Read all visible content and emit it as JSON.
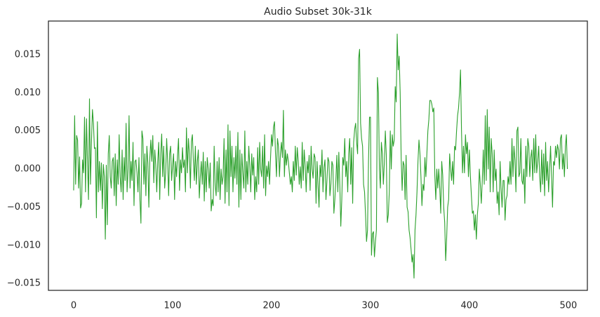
{
  "chart_data": {
    "type": "line",
    "title": "Audio Subset 30k-31k",
    "xlim": [
      -25.5,
      519.2
    ],
    "xticks": [
      0,
      100,
      200,
      300,
      400,
      500
    ],
    "ylim": [
      -0.0159,
      0.0194
    ],
    "yticks": [
      {
        "value": -0.015,
        "label": "−0.015"
      },
      {
        "value": -0.01,
        "label": "−0.010"
      },
      {
        "value": -0.005,
        "label": "−0.005"
      },
      {
        "value": 0,
        "label": "0.000"
      },
      0.005,
      {
        "value": 0.01,
        "label": "0.010"
      },
      0.015
    ],
    "grid": false,
    "series": [
      {
        "color": "#2ca02c",
        "x": [
          0,
          1,
          2,
          3,
          4,
          5,
          6,
          7,
          8,
          9,
          10,
          11,
          12,
          13,
          14,
          15,
          16,
          17,
          18,
          19,
          20,
          21,
          22,
          23,
          24,
          25,
          26,
          27,
          28,
          29,
          30,
          31,
          32,
          33,
          34,
          35,
          36,
          37,
          38,
          39,
          40,
          41,
          42,
          43,
          44,
          45,
          46,
          47,
          48,
          49,
          50,
          51,
          52,
          53,
          54,
          55,
          56,
          57,
          58,
          59,
          60,
          61,
          62,
          63,
          64,
          65,
          66,
          67,
          68,
          69,
          70,
          71,
          72,
          73,
          74,
          75,
          76,
          77,
          78,
          79,
          80,
          81,
          82,
          83,
          84,
          85,
          86,
          87,
          88,
          89,
          90,
          91,
          92,
          93,
          94,
          95,
          96,
          97,
          98,
          99,
          100,
          101,
          102,
          103,
          104,
          105,
          106,
          107,
          108,
          109,
          110,
          111,
          112,
          113,
          114,
          115,
          116,
          117,
          118,
          119,
          120,
          121,
          122,
          123,
          124,
          125,
          126,
          127,
          128,
          129,
          130,
          131,
          132,
          133,
          134,
          135,
          136,
          137,
          138,
          139,
          140,
          141,
          142,
          143,
          144,
          145,
          146,
          147,
          148,
          149,
          150,
          151,
          152,
          153,
          154,
          155,
          156,
          157,
          158,
          159,
          160,
          161,
          162,
          163,
          164,
          165,
          166,
          167,
          168,
          169,
          170,
          171,
          172,
          173,
          174,
          175,
          176,
          177,
          178,
          179,
          180,
          181,
          182,
          183,
          184,
          185,
          186,
          187,
          188,
          189,
          190,
          191,
          192,
          193,
          194,
          195,
          196,
          197,
          198,
          199,
          200,
          201,
          202,
          203,
          204,
          205,
          206,
          207,
          208,
          209,
          210,
          211,
          212,
          213,
          214,
          215,
          216,
          217,
          218,
          219,
          220,
          221,
          222,
          223,
          224,
          225,
          226,
          227,
          228,
          229,
          230,
          231,
          232,
          233,
          234,
          235,
          236,
          237,
          238,
          239,
          240,
          241,
          242,
          243,
          244,
          245,
          246,
          247,
          248,
          249,
          250,
          251,
          252,
          253,
          254,
          255,
          256,
          257,
          258,
          259,
          260,
          261,
          262,
          263,
          264,
          265,
          266,
          267,
          268,
          269,
          270,
          271,
          272,
          273,
          274,
          275,
          276,
          277,
          278,
          279,
          280,
          281,
          282,
          283,
          284,
          285,
          286,
          287,
          288,
          289,
          290,
          291,
          292,
          293,
          294,
          295,
          296,
          297,
          298,
          299,
          300,
          301,
          302,
          303,
          304,
          305,
          306,
          307,
          308,
          309,
          310,
          311,
          312,
          313,
          314,
          315,
          316,
          317,
          318,
          319,
          320,
          321,
          322,
          323,
          324,
          325,
          326,
          327,
          328,
          329,
          330,
          331,
          332,
          333,
          334,
          335,
          336,
          337,
          338,
          339,
          340,
          341,
          342,
          343,
          344,
          345,
          346,
          347,
          348,
          349,
          350,
          351,
          352,
          353,
          354,
          355,
          356,
          357,
          358,
          359,
          360,
          361,
          362,
          363,
          364,
          365,
          366,
          367,
          368,
          369,
          370,
          371,
          372,
          373,
          374,
          375,
          376,
          377,
          378,
          379,
          380,
          381,
          382,
          383,
          384,
          385,
          386,
          387,
          388,
          389,
          390,
          391,
          392,
          393,
          394,
          395,
          396,
          397,
          398,
          399,
          400,
          401,
          402,
          403,
          404,
          405,
          406,
          407,
          408,
          409,
          410,
          411,
          412,
          413,
          414,
          415,
          416,
          417,
          418,
          419,
          420,
          421,
          422,
          423,
          424,
          425,
          426,
          427,
          428,
          429,
          430,
          431,
          432,
          433,
          434,
          435,
          436,
          437,
          438,
          439,
          440,
          441,
          442,
          443,
          444,
          445,
          446,
          447,
          448,
          449,
          450,
          451,
          452,
          453,
          454,
          455,
          456,
          457,
          458,
          459,
          460,
          461,
          462,
          463,
          464,
          465,
          466,
          467,
          468,
          469,
          470,
          471,
          472,
          473,
          474,
          475,
          476,
          477,
          478,
          479,
          480,
          481,
          482,
          483,
          484,
          485,
          486,
          487,
          488,
          489,
          490,
          491,
          492,
          493,
          494,
          495,
          496,
          497,
          498,
          499
        ],
        "values": [
          -0.0028,
          0.007,
          -0.002,
          0.0044,
          0.0038,
          -0.0025,
          0.0016,
          -0.0051,
          -0.0045,
          0.0012,
          -0.0005,
          0.0068,
          -0.003,
          0.0066,
          0.001,
          -0.004,
          0.0092,
          -0.002,
          0.0035,
          0.0078,
          0.006,
          0.0027,
          0.0028,
          -0.0064,
          0.0062,
          -0.003,
          0.001,
          -0.0028,
          0.0008,
          -0.0052,
          0.0006,
          -0.001,
          -0.0092,
          0.0005,
          -0.0073,
          0.002,
          0.0044,
          -0.001,
          -0.0025,
          0.001,
          0.0015,
          -0.0035,
          0.002,
          -0.0048,
          0.0012,
          -0.002,
          0.0045,
          -0.001,
          -0.003,
          0.0025,
          -0.004,
          0.0015,
          -0.0015,
          0.006,
          -0.003,
          0.0,
          0.007,
          -0.0025,
          0.001,
          -0.0015,
          0.0035,
          -0.0048,
          0.001,
          0.0012,
          -0.0005,
          -0.003,
          0.0015,
          -0.004,
          -0.0071,
          0.005,
          0.004,
          -0.002,
          0.002,
          -0.0035,
          0.003,
          0.0008,
          -0.005,
          0.0015,
          0.0038,
          0.001,
          0.0044,
          -0.0018,
          0.0025,
          0.0005,
          -0.003,
          0.001,
          0.0035,
          -0.004,
          0.002,
          0.0046,
          -0.001,
          0.003,
          -0.0025,
          -0.0005,
          0.004,
          0.001,
          -0.0035,
          0.002,
          0.003,
          -0.0015,
          0.0005,
          0.002,
          -0.004,
          0.001,
          -0.001,
          0.0018,
          0.004,
          -0.0028,
          0.0012,
          -0.0005,
          0.0028,
          0.0002,
          0.0012,
          -0.003,
          0.0054,
          -0.0005,
          0.004,
          0.002,
          -0.0025,
          0.0036,
          0.0045,
          0.001,
          -0.0015,
          0.003,
          -0.002,
          0.001,
          0.0025,
          -0.0038,
          -0.001,
          0.001,
          -0.002,
          0.0022,
          -0.0042,
          0.001,
          -0.003,
          0.0015,
          0.0,
          -0.0025,
          0.0008,
          -0.0055,
          -0.004,
          -0.0048,
          0.003,
          -0.002,
          -0.0035,
          0.001,
          -0.003,
          0.0015,
          -0.004,
          0.0,
          -0.002,
          -0.001,
          0.004,
          -0.0045,
          0.0025,
          -0.003,
          0.0058,
          -0.0048,
          0.005,
          -0.001,
          0.003,
          -0.003,
          0.0015,
          -0.0012,
          0.003,
          -0.002,
          0.0048,
          -0.005,
          0.0025,
          -0.004,
          0.002,
          -0.0005,
          -0.0025,
          0.005,
          -0.003,
          0.001,
          -0.002,
          0.003,
          0.0005,
          -0.003,
          0.002,
          -0.0008,
          0.0015,
          -0.004,
          -0.001,
          -0.003,
          0.0028,
          -0.002,
          0.0035,
          0.0,
          -0.001,
          0.003,
          -0.0025,
          0.0045,
          -0.0035,
          0.0004,
          -0.001,
          0.001,
          -0.002,
          0.0015,
          0.0045,
          0.003,
          0.0055,
          0.0062,
          0.002,
          -0.001,
          0.004,
          0.003,
          -0.001,
          0.002,
          0.0035,
          0.0015,
          0.0077,
          -0.001,
          0.0025,
          0.0005,
          0.002,
          0.001,
          -0.0005,
          -0.002,
          -0.001,
          -0.003,
          0.001,
          -0.0015,
          0.003,
          -0.0008,
          0.0028,
          0.001,
          -0.002,
          0.0003,
          -0.0025,
          0.0035,
          -0.0015,
          0.0025,
          0.0005,
          -0.003,
          0.001,
          -0.0005,
          0.0018,
          -0.0028,
          0.003,
          0.0,
          -0.0012,
          0.002,
          0.0015,
          -0.0045,
          0.001,
          -0.002,
          -0.005,
          0.0005,
          -0.001,
          0.0025,
          -0.003,
          0.0002,
          0.0012,
          -0.004,
          -0.0015,
          0.0015,
          0.001,
          -0.0035,
          -0.002,
          0.001,
          0.0005,
          -0.0058,
          -0.004,
          -0.0015,
          0.0018,
          -0.003,
          0.0022,
          -0.002,
          -0.0075,
          -0.004,
          0.0015,
          0.0005,
          0.004,
          -0.001,
          0.001,
          -0.003,
          0.002,
          0.004,
          -0.002,
          0.0028,
          -0.0045,
          0.0035,
          0.0052,
          0.006,
          0.0035,
          0.002,
          0.0145,
          0.0157,
          0.006,
          0.004,
          0.003,
          -0.002,
          -0.003,
          -0.006,
          -0.0095,
          -0.008,
          0.001,
          0.0068,
          0.0068,
          -0.0113,
          -0.0085,
          -0.0082,
          -0.0115,
          -0.0095,
          -0.008,
          0.012,
          0.01,
          0.0,
          -0.0025,
          0.0035,
          0.002,
          -0.002,
          0.0008,
          0.005,
          0.0018,
          -0.007,
          -0.006,
          -0.003,
          0.005,
          0.0,
          0.0045,
          0.003,
          0.0038,
          0.0108,
          0.0088,
          0.0177,
          0.013,
          0.0148,
          0.01,
          0.0015,
          -0.0028,
          0.001,
          0.0005,
          -0.004,
          0.0018,
          -0.005,
          -0.0056,
          -0.008,
          -0.009,
          -0.0105,
          -0.0122,
          -0.0112,
          -0.0143,
          -0.008,
          -0.006,
          -0.003,
          0.001,
          0.0038,
          0.002,
          -0.001,
          -0.0048,
          -0.002,
          -0.0028,
          0.0015,
          -0.001,
          0.002,
          0.005,
          0.0065,
          0.009,
          0.009,
          0.0085,
          0.0075,
          0.008,
          -0.0008,
          -0.004,
          0.0,
          -0.0025,
          0.0,
          -0.0025,
          -0.0058,
          0.001,
          -0.0008,
          -0.005,
          -0.007,
          -0.012,
          -0.009,
          -0.005,
          -0.004,
          0.002,
          0.0,
          -0.0015,
          0.001,
          -0.002,
          0.003,
          0.0025,
          0.005,
          0.007,
          0.008,
          0.01,
          0.013,
          0.005,
          -0.0005,
          0.003,
          -0.0005,
          0.0045,
          0.002,
          0.0035,
          -0.001,
          0.0025,
          -0.001,
          -0.0035,
          -0.0058,
          -0.0055,
          -0.008,
          -0.006,
          -0.0092,
          -0.006,
          -0.0045,
          0.0,
          -0.002,
          -0.0045,
          -0.0015,
          0.0025,
          -0.002,
          0.007,
          -0.0015,
          0.0078,
          0.0,
          0.0055,
          -0.003,
          0.004,
          0.002,
          -0.003,
          0.0025,
          -0.0015,
          0.0,
          -0.0045,
          -0.003,
          -0.006,
          0.001,
          -0.0025,
          -0.005,
          -0.0015,
          -0.0015,
          -0.0067,
          -0.004,
          -0.0035,
          -0.001,
          -0.002,
          0.001,
          -0.002,
          0.004,
          -0.001,
          0.003,
          0.0012,
          -0.003,
          0.005,
          0.0055,
          -0.001,
          -0.0005,
          0.004,
          -0.0015,
          -0.002,
          0.0,
          -0.0045,
          0.003,
          -0.001,
          0.004,
          0.003,
          -0.001,
          0.0015,
          0.0025,
          -0.0015,
          0.004,
          -0.0005,
          0.0045,
          -0.0005,
          0.001,
          0.003,
          -0.001,
          -0.003,
          0.0025,
          -0.002,
          0.002,
          -0.0035,
          0.0035,
          -0.0015,
          0.001,
          -0.003,
          0.0,
          0.003,
          -0.001,
          -0.005,
          0.001,
          0.0005,
          0.003,
          0.0015,
          0.0032,
          0.0025,
          0.0,
          0.004,
          0.0045,
          0.0,
          0.002,
          -0.001,
          0.003,
          0.0045,
          0.0
        ]
      }
    ]
  }
}
